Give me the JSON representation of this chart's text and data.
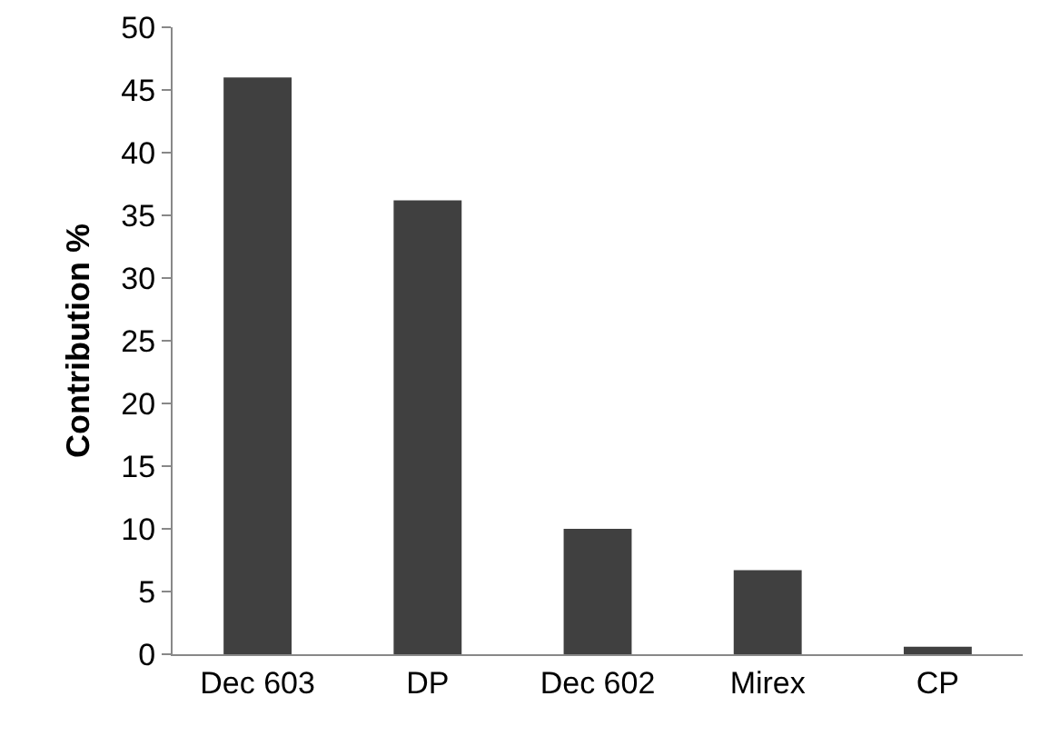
{
  "chart_data": {
    "type": "bar",
    "ylabel": "Contribution %",
    "categories": [
      "Dec 603",
      "DP",
      "Dec 602",
      "Mirex",
      "CP"
    ],
    "values": [
      46,
      36.2,
      10,
      6.7,
      0.6
    ],
    "color": "#404040",
    "ylim": [
      0,
      50
    ],
    "yticks": [
      0,
      5,
      10,
      15,
      20,
      25,
      30,
      35,
      40,
      45,
      50
    ],
    "grid": false
  }
}
